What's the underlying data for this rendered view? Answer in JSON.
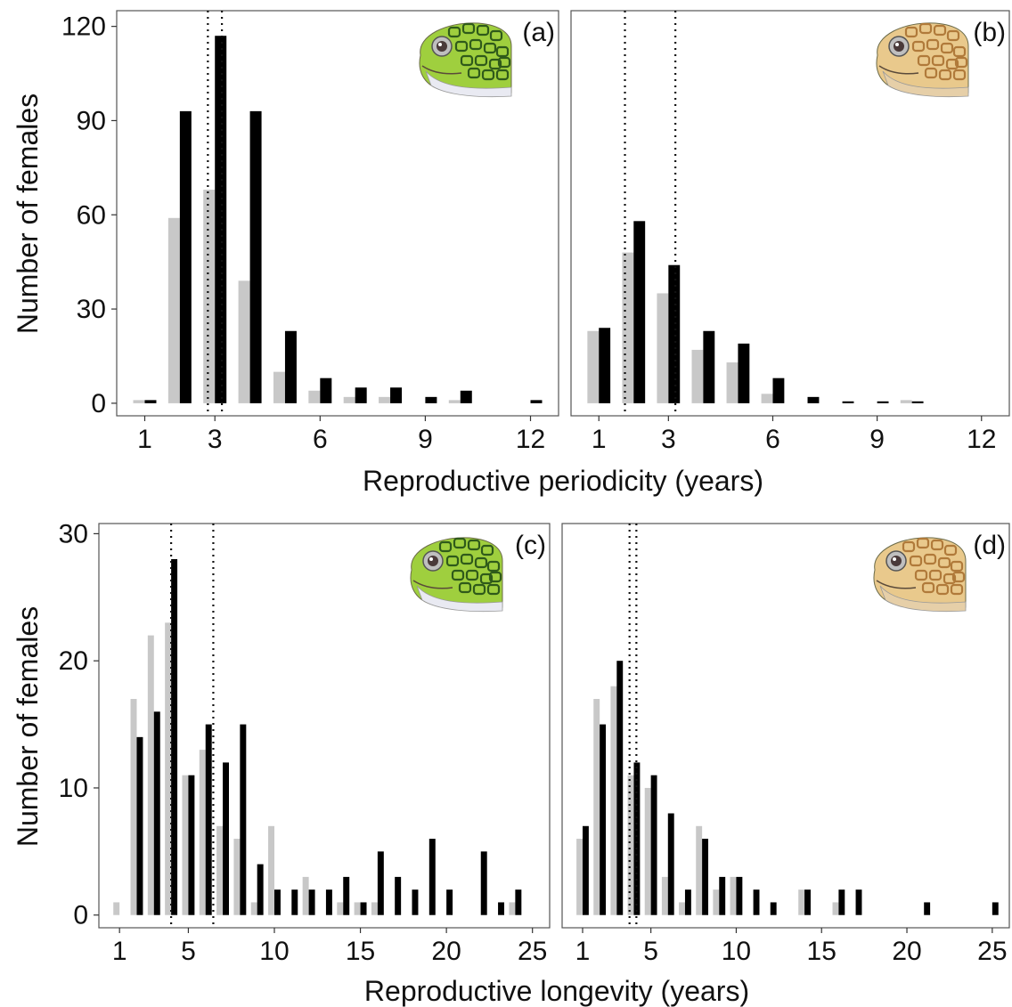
{
  "colors": {
    "grey": "#c8c8c8",
    "black": "#000000",
    "frame": "#555555",
    "tick": "#333333"
  },
  "axis_labels": {
    "y": "Number of females",
    "x_top": "Reproductive periodicity (years)",
    "x_bottom": "Reproductive longevity (years)"
  },
  "chart_data": [
    {
      "type": "bar",
      "panel_label": "(a)",
      "icon": "green-turtle-head-icon",
      "xlim": [
        0.2,
        12.8
      ],
      "ylim": [
        -4,
        125
      ],
      "xticks": [
        1,
        3,
        6,
        9,
        12
      ],
      "yticks": [
        0,
        30,
        60,
        90,
        120
      ],
      "bar_width": 0.33,
      "vlines": [
        2.8,
        3.2
      ],
      "series": [
        {
          "color": "grey",
          "points": [
            [
              1,
              1
            ],
            [
              2,
              59
            ],
            [
              3,
              68
            ],
            [
              4,
              39
            ],
            [
              5,
              10
            ],
            [
              6,
              4
            ],
            [
              7,
              2
            ],
            [
              8,
              2
            ],
            [
              10,
              1
            ]
          ]
        },
        {
          "color": "black",
          "points": [
            [
              1,
              1
            ],
            [
              2,
              93
            ],
            [
              3,
              117
            ],
            [
              4,
              93
            ],
            [
              5,
              23
            ],
            [
              6,
              8
            ],
            [
              7,
              5
            ],
            [
              8,
              5
            ],
            [
              9,
              2
            ],
            [
              10,
              4
            ],
            [
              12,
              1
            ]
          ]
        }
      ]
    },
    {
      "type": "bar",
      "panel_label": "(b)",
      "icon": "loggerhead-turtle-head-icon",
      "xlim": [
        0.2,
        12.8
      ],
      "ylim": [
        -4,
        125
      ],
      "xticks": [
        1,
        3,
        6,
        9,
        12
      ],
      "yticks": [
        0,
        30,
        60,
        90,
        120
      ],
      "bar_width": 0.33,
      "vlines": [
        1.75,
        3.2
      ],
      "series": [
        {
          "color": "grey",
          "points": [
            [
              1,
              23
            ],
            [
              2,
              48
            ],
            [
              3,
              35
            ],
            [
              4,
              17
            ],
            [
              5,
              13
            ],
            [
              6,
              3
            ],
            [
              10,
              1
            ]
          ]
        },
        {
          "color": "black",
          "points": [
            [
              1,
              24
            ],
            [
              2,
              58
            ],
            [
              3,
              44
            ],
            [
              4,
              23
            ],
            [
              5,
              19
            ],
            [
              6,
              8
            ],
            [
              7,
              2
            ],
            [
              8,
              0.6
            ],
            [
              9,
              0.6
            ],
            [
              10,
              0.6
            ]
          ]
        }
      ]
    },
    {
      "type": "bar",
      "panel_label": "(c)",
      "icon": "green-turtle-head-icon",
      "xlim": [
        -0.2,
        26.0
      ],
      "ylim": [
        -1,
        30.8
      ],
      "xticks": [
        1,
        5,
        10,
        15,
        20,
        25
      ],
      "yticks": [
        0,
        10,
        20,
        30
      ],
      "bar_width": 0.36,
      "vlines": [
        4.0,
        6.45
      ],
      "series": [
        {
          "color": "grey",
          "points": [
            [
              1,
              1
            ],
            [
              2,
              17
            ],
            [
              3,
              22
            ],
            [
              4,
              23
            ],
            [
              5,
              11
            ],
            [
              6,
              13
            ],
            [
              7,
              7
            ],
            [
              8,
              6
            ],
            [
              9,
              1
            ],
            [
              10,
              7
            ],
            [
              12,
              3
            ],
            [
              14,
              1
            ],
            [
              15,
              1
            ],
            [
              16,
              1
            ],
            [
              24,
              1
            ]
          ]
        },
        {
          "color": "black",
          "points": [
            [
              2,
              14
            ],
            [
              3,
              16
            ],
            [
              4,
              28
            ],
            [
              5,
              11
            ],
            [
              6,
              15
            ],
            [
              7,
              12
            ],
            [
              8,
              15
            ],
            [
              9,
              4
            ],
            [
              10,
              2
            ],
            [
              11,
              2
            ],
            [
              12,
              2
            ],
            [
              13,
              2
            ],
            [
              14,
              3
            ],
            [
              15,
              1
            ],
            [
              16,
              5
            ],
            [
              17,
              3
            ],
            [
              18,
              2
            ],
            [
              19,
              6
            ],
            [
              20,
              2
            ],
            [
              22,
              5
            ],
            [
              23,
              1
            ],
            [
              24,
              2
            ]
          ]
        }
      ]
    },
    {
      "type": "bar",
      "panel_label": "(d)",
      "icon": "loggerhead-turtle-head-icon",
      "xlim": [
        -0.2,
        26.0
      ],
      "ylim": [
        -1,
        30.8
      ],
      "xticks": [
        1,
        5,
        10,
        15,
        20,
        25
      ],
      "yticks": [
        0,
        10,
        20,
        30
      ],
      "bar_width": 0.36,
      "vlines": [
        3.75,
        4.15
      ],
      "series": [
        {
          "color": "grey",
          "points": [
            [
              1,
              6
            ],
            [
              2,
              17
            ],
            [
              3,
              18
            ],
            [
              4,
              11
            ],
            [
              5,
              10
            ],
            [
              6,
              3
            ],
            [
              7,
              1
            ],
            [
              8,
              7
            ],
            [
              9,
              2
            ],
            [
              10,
              3
            ],
            [
              14,
              2
            ],
            [
              16,
              1
            ]
          ]
        },
        {
          "color": "black",
          "points": [
            [
              1,
              7
            ],
            [
              2,
              15
            ],
            [
              3,
              20
            ],
            [
              4,
              12
            ],
            [
              5,
              11
            ],
            [
              6,
              8
            ],
            [
              7,
              2
            ],
            [
              8,
              6
            ],
            [
              9,
              3
            ],
            [
              10,
              3
            ],
            [
              11,
              2
            ],
            [
              12,
              1
            ],
            [
              14,
              2
            ],
            [
              16,
              2
            ],
            [
              17,
              2
            ],
            [
              21,
              1
            ],
            [
              25,
              1
            ]
          ]
        }
      ]
    }
  ]
}
